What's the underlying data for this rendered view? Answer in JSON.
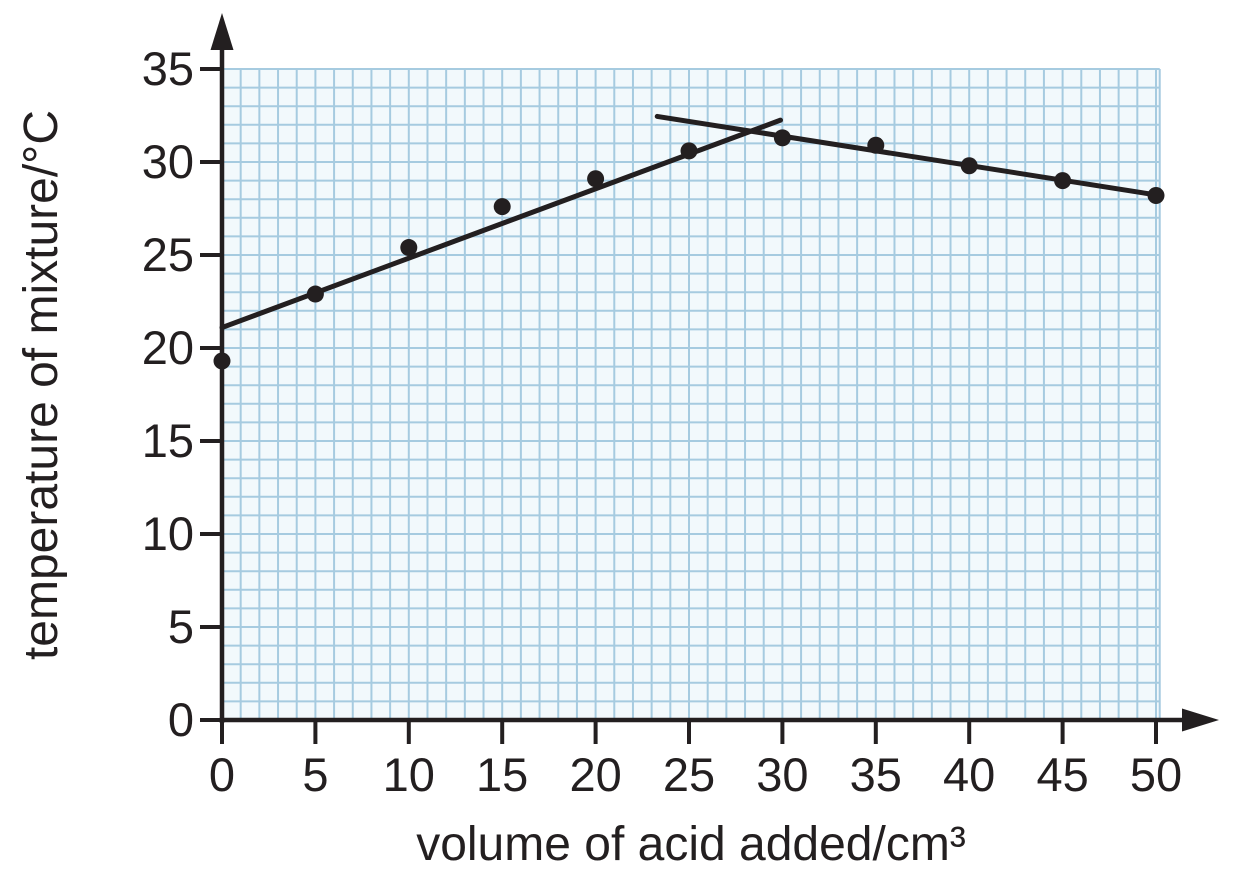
{
  "chart_data": {
    "type": "scatter",
    "title": "",
    "xlabel": "volume of acid added/cm³",
    "ylabel": "temperature of mixture/°C",
    "xlim": [
      0,
      50.2
    ],
    "ylim": [
      0,
      35
    ],
    "xticks": [
      0,
      5,
      10,
      15,
      20,
      25,
      30,
      35,
      40,
      45,
      50
    ],
    "yticks": [
      0,
      5,
      10,
      15,
      20,
      25,
      30,
      35
    ],
    "grid": {
      "on": true,
      "step": 1,
      "style": "square graph-paper"
    },
    "points": {
      "x": [
        0,
        5,
        10,
        15,
        20,
        25,
        30,
        35,
        40,
        45,
        50
      ],
      "y": [
        19.3,
        22.9,
        25.4,
        27.6,
        29.1,
        30.6,
        31.3,
        30.9,
        29.8,
        29.0,
        28.2
      ]
    },
    "fit_lines": [
      {
        "name": "rising-extrapolation",
        "x1": 0,
        "y1": 21.1,
        "x2": 29.9,
        "y2": 32.25
      },
      {
        "name": "falling-extrapolation",
        "x1": 23.3,
        "y1": 32.45,
        "x2": 50.2,
        "y2": 28.2
      }
    ],
    "intersection": {
      "x": 28.4,
      "y": 31.7
    },
    "legend": "none",
    "colors": {
      "ink": "#231f20",
      "grid_line": "#a6cbe0",
      "grid_fill": "#f2f9fc",
      "background": "#ffffff"
    }
  }
}
